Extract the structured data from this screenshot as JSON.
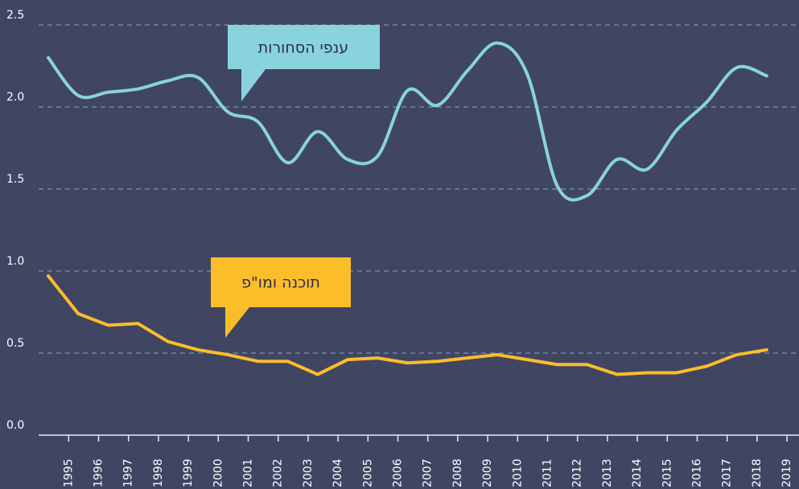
{
  "chart_data": {
    "type": "line",
    "categories": [
      "1995",
      "1996",
      "1997",
      "1998",
      "1999",
      "2000",
      "2001",
      "2002",
      "2003",
      "2004",
      "2005",
      "2006",
      "2007",
      "2008",
      "2009",
      "2010",
      "2011",
      "2012",
      "2013",
      "2014",
      "2015",
      "2016",
      "2017",
      "2018",
      "2019"
    ],
    "series": [
      {
        "name": "ענפי הסחורות",
        "color": "#88d3dc",
        "smooth": true,
        "values": [
          2.3,
          2.07,
          2.09,
          2.11,
          2.16,
          2.18,
          1.97,
          1.91,
          1.66,
          1.85,
          1.68,
          1.7,
          2.1,
          2.01,
          2.22,
          2.39,
          2.2,
          1.52,
          1.46,
          1.68,
          1.62,
          1.86,
          2.03,
          2.24,
          2.19
        ]
      },
      {
        "name": "תוכנה ומו\"פ",
        "color": "#fbbd2a",
        "smooth": false,
        "values": [
          0.97,
          0.74,
          0.67,
          0.68,
          0.57,
          0.52,
          0.49,
          0.45,
          0.45,
          0.37,
          0.46,
          0.47,
          0.44,
          0.45,
          0.47,
          0.49,
          0.46,
          0.43,
          0.43,
          0.37,
          0.38,
          0.38,
          0.42,
          0.49,
          0.52
        ]
      }
    ],
    "ylim": [
      0,
      2.5
    ],
    "yticks": [
      {
        "value": 0,
        "label": "0.0"
      },
      0.5,
      {
        "value": 1,
        "label": "1.0"
      },
      1.5,
      {
        "value": 2,
        "label": "2.0"
      },
      2.5
    ],
    "grid": true
  }
}
